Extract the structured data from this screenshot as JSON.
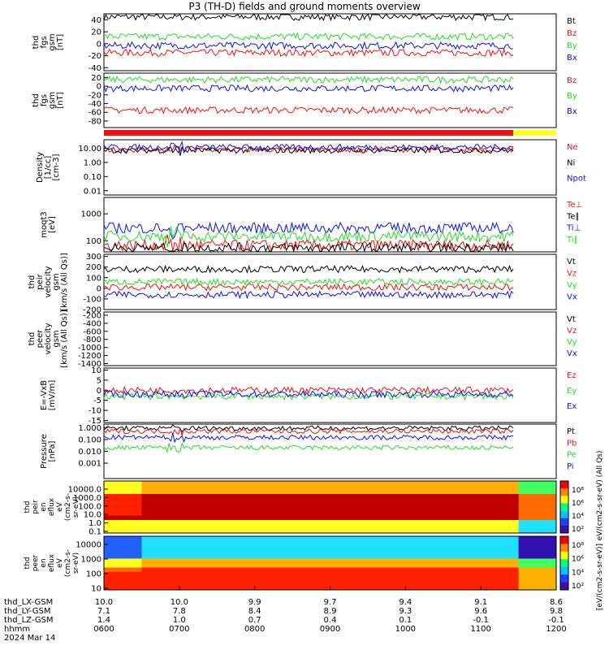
{
  "title": "P3 (TH-D) fields and ground moments overview",
  "colors": {
    "black": "#000000",
    "red": "#ee1111",
    "green": "#22dd22",
    "blue": "#1111ee",
    "yellow": "#ffff22"
  },
  "chart_data": [
    {
      "type": "line",
      "id": "p1",
      "ylabel": [
        "thd",
        "fgs",
        "gsm",
        "[nT]"
      ],
      "ylim": [
        -45,
        50
      ],
      "yticks": [
        "40",
        "20",
        "0",
        "-20",
        "-40"
      ],
      "ytick_values": [
        40,
        20,
        0,
        -20,
        -40
      ],
      "series": [
        {
          "name": "Bt",
          "color": "#000000",
          "base": 45
        },
        {
          "name": "Bz",
          "color": "#ee1111",
          "base": -15
        },
        {
          "name": "By",
          "color": "#22dd22",
          "base": 12
        },
        {
          "name": "Bx",
          "color": "#1111ee",
          "base": -3
        }
      ]
    },
    {
      "type": "line",
      "id": "p2",
      "ylabel": [
        "thd",
        "fgs",
        "gsm",
        "[nT]"
      ],
      "ylim": [
        -95,
        30
      ],
      "yticks": [
        "20",
        "0",
        "-20",
        "-40",
        "-60",
        "-80"
      ],
      "ytick_values": [
        20,
        0,
        -20,
        -40,
        -60,
        -80
      ],
      "series": [
        {
          "name": "Bz",
          "color": "#ee1111",
          "base": -55
        },
        {
          "name": "By",
          "color": "#22dd22",
          "base": 15
        },
        {
          "name": "Bx",
          "color": "#1111ee",
          "base": -5
        }
      ]
    },
    {
      "type": "line",
      "id": "p4",
      "log": true,
      "ylabel": [
        "Density",
        "[1/cc]",
        "[cm-3]"
      ],
      "ylim": [
        0.005,
        40
      ],
      "yticks": [
        "10.00",
        "1.00",
        "0.10",
        "0.01"
      ],
      "ytick_values": [
        10,
        1,
        0.1,
        0.01
      ],
      "series": [
        {
          "name": "Ne",
          "color": "#ee1111",
          "base": 8
        },
        {
          "name": "Ni",
          "color": "#000000",
          "base": 7
        },
        {
          "name": "Npot",
          "color": "#1111ee",
          "base": 12
        }
      ]
    },
    {
      "type": "line",
      "id": "p5",
      "log": true,
      "ylabel": [
        "moqt3",
        "[eV]"
      ],
      "ylim": [
        40,
        4000
      ],
      "yticks": [
        "1000",
        "100"
      ],
      "ytick_values": [
        1000,
        100
      ],
      "series": [
        {
          "name": "Te⊥",
          "color": "#ee1111",
          "base": 70
        },
        {
          "name": "Te∥",
          "color": "#000000",
          "base": 55
        },
        {
          "name": "Ti⊥",
          "color": "#1111ee",
          "base": 300
        },
        {
          "name": "Ti∥",
          "color": "#22dd22",
          "base": 150
        }
      ]
    },
    {
      "type": "line",
      "id": "p6",
      "ylabel": [
        "thd",
        "peir",
        "velocity",
        "gsm",
        "[km/s (All Qs)]"
      ],
      "ylim": [
        -200,
        320
      ],
      "yticks": [
        "300",
        "200",
        "100",
        "0",
        "-100",
        "-200"
      ],
      "ytick_values": [
        300,
        200,
        100,
        0,
        -100,
        -200
      ],
      "series": [
        {
          "name": "Vt",
          "color": "#000000",
          "base": 180
        },
        {
          "name": "Vz",
          "color": "#ee1111",
          "base": 10
        },
        {
          "name": "Vy",
          "color": "#22dd22",
          "base": 60
        },
        {
          "name": "Vx",
          "color": "#1111ee",
          "base": -60
        }
      ]
    },
    {
      "type": "line",
      "id": "p7",
      "ylabel": [
        "thd",
        "peer",
        "velocity",
        "gsm",
        "[km/s (All Qs)]"
      ],
      "ylim": [
        -1450,
        -120
      ],
      "yticks": [
        "-200",
        "-400",
        "-600",
        "-800",
        "-1000",
        "-1200",
        "-1400"
      ],
      "ytick_values": [
        -200,
        -400,
        -600,
        -800,
        -1000,
        -1200,
        -1400
      ],
      "series": [
        {
          "name": "Vt",
          "color": "#000000"
        },
        {
          "name": "Vz",
          "color": "#ee1111"
        },
        {
          "name": "Vy",
          "color": "#22dd22"
        },
        {
          "name": "Vx",
          "color": "#1111ee"
        }
      ]
    },
    {
      "type": "line",
      "id": "p8",
      "ylabel": [
        "E=-VxB",
        "[mV/m]"
      ],
      "ylim": [
        -16,
        11
      ],
      "yticks": [
        "10",
        "5",
        "0",
        "-5",
        "-10",
        "-15"
      ],
      "ytick_values": [
        10,
        5,
        0,
        -5,
        -10,
        -15
      ],
      "series": [
        {
          "name": "Ez",
          "color": "#ee1111",
          "base": 0
        },
        {
          "name": "Ey",
          "color": "#22dd22",
          "base": -3
        },
        {
          "name": "Ex",
          "color": "#1111ee",
          "base": -2
        }
      ]
    },
    {
      "type": "line",
      "id": "p9",
      "log": true,
      "ylabel": [
        "Pressure",
        "[nPa]"
      ],
      "ylim": [
        5e-05,
        2
      ],
      "yticks": [
        "1.000",
        "0.100",
        "0.010",
        "0.001"
      ],
      "ytick_values": [
        1,
        0.1,
        0.01,
        0.001
      ],
      "series": [
        {
          "name": "Pt",
          "color": "#000000",
          "base": 0.9
        },
        {
          "name": "Pb",
          "color": "#ee1111",
          "base": 0.5
        },
        {
          "name": "Pe",
          "color": "#22dd22",
          "base": 0.02
        },
        {
          "name": "Pi",
          "color": "#1111ee",
          "base": 0.15
        }
      ]
    },
    {
      "type": "heatmap",
      "id": "p10",
      "log": true,
      "ylabel": [
        "thd",
        "peir",
        "en",
        "eflux",
        "eV",
        "(cm2-s-",
        "sr-eV)"
      ],
      "yticks": [
        "10000.0",
        "1000.0",
        "100.0",
        "10.0",
        "1.0",
        "0.1"
      ],
      "colorbar_ticks": [
        "10⁸",
        "10⁶",
        "10⁴",
        "10²"
      ],
      "colorbar_label": "eV/(cm2-s-sr-eV) (All Qs)"
    },
    {
      "type": "heatmap",
      "id": "p11",
      "log": true,
      "ylabel": [
        "thd",
        "peer",
        "en",
        "eflux",
        "eV",
        "(cm2-s-",
        "sr-eV)"
      ],
      "yticks": [
        "10000",
        "1000",
        "100",
        "10"
      ],
      "colorbar_ticks": [
        "10⁸",
        "10⁶",
        "10⁴",
        "10²"
      ],
      "colorbar_label": "[eV/(cm2-s-sr-eV)]"
    }
  ],
  "xaxis": {
    "row_labels": [
      "thd_LX-GSM",
      "thd_LY-GSM",
      "thd_LZ-GSM",
      "hhmm",
      "2024 Mar 14"
    ],
    "columns": [
      {
        "lx": "10.0",
        "ly": "7.1",
        "lz": "1.4",
        "hhmm": "0600"
      },
      {
        "lx": "10.0",
        "ly": "7.8",
        "lz": "1.0",
        "hhmm": "0700"
      },
      {
        "lx": "9.9",
        "ly": "8.4",
        "lz": "0.7",
        "hhmm": "0800"
      },
      {
        "lx": "9.7",
        "ly": "8.9",
        "lz": "0.4",
        "hhmm": "0900"
      },
      {
        "lx": "9.4",
        "ly": "9.3",
        "lz": "0.1",
        "hhmm": "1000"
      },
      {
        "lx": "9.1",
        "ly": "9.6",
        "lz": "-0.1",
        "hhmm": "1100"
      },
      {
        "lx": "8.6",
        "ly": "9.8",
        "lz": "-0.1",
        "hhmm": "1200"
      }
    ]
  }
}
